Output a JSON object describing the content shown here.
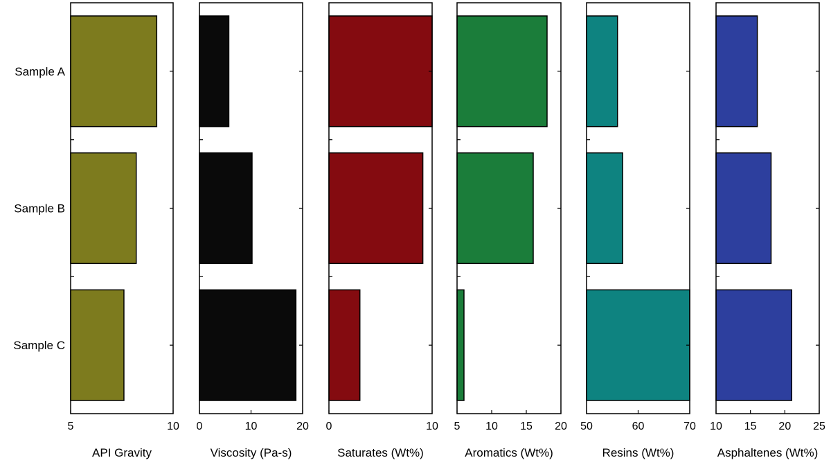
{
  "chart_data": {
    "type": "bar",
    "orientation": "horizontal",
    "categories": [
      "Sample A",
      "Sample B",
      "Sample C"
    ],
    "panels": [
      {
        "xlabel": "API Gravity",
        "xlim": [
          5,
          10
        ],
        "ticks": [
          "5",
          "10"
        ],
        "values": [
          9.2,
          8.2,
          7.6
        ],
        "color": "#7d7b1e"
      },
      {
        "xlabel": "Viscosity (Pa-s)",
        "xlim": [
          0,
          20
        ],
        "ticks": [
          "0",
          "10",
          "20"
        ],
        "values": [
          5.7,
          10.2,
          18.7
        ],
        "color": "#0a0a0a"
      },
      {
        "xlabel": "Saturates (Wt%)",
        "xlim": [
          0,
          10
        ],
        "ticks": [
          "0",
          "10"
        ],
        "values": [
          10,
          9.1,
          3.0
        ],
        "color": "#840b10"
      },
      {
        "xlabel": "Aromatics (Wt%)",
        "xlim": [
          5,
          20
        ],
        "ticks": [
          "5",
          "10",
          "15",
          "20"
        ],
        "values": [
          18.0,
          16.0,
          6.0
        ],
        "color": "#1b7d3a"
      },
      {
        "xlabel": "Resins (Wt%)",
        "xlim": [
          50,
          70
        ],
        "ticks": [
          "50",
          "60",
          "70"
        ],
        "values": [
          56.0,
          57.0,
          70.0
        ],
        "color": "#0e8380"
      },
      {
        "xlabel": "Asphaltenes (Wt%)",
        "xlim": [
          10,
          25
        ],
        "ticks": [
          "10",
          "15",
          "20",
          "25"
        ],
        "values": [
          16.0,
          18.0,
          21.0
        ],
        "color": "#2d3f9e"
      }
    ]
  }
}
